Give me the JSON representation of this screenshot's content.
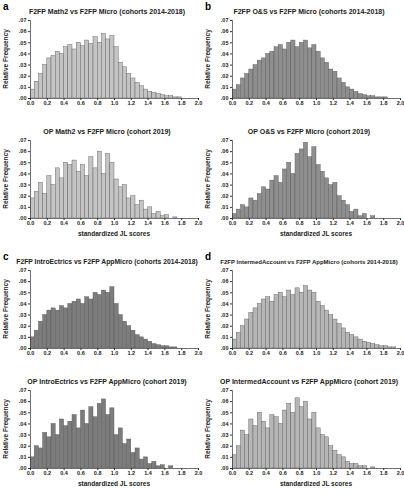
{
  "chart_data": [
    {
      "type": "histogram",
      "title": "F2FP Math2 vs F2FP Micro (cohorts 2014-2018)",
      "annotations": [
        "a"
      ],
      "y_label": "Relative Frequency",
      "color": "#c4c4c4",
      "bins": [
        0,
        0.05,
        0.1,
        0.15,
        0.2,
        0.25,
        0.3,
        0.35,
        0.4,
        0.45,
        0.5,
        0.55,
        0.6,
        0.65,
        0.7,
        0.75,
        0.8,
        0.85,
        0.9,
        0.95,
        1.0,
        1.05,
        1.1,
        1.15,
        1.2,
        1.25,
        1.3,
        1.35,
        1.4,
        1.45,
        1.5,
        1.55,
        1.6,
        1.65,
        1.7,
        1.75,
        1.8,
        1.85,
        1.9,
        1.95,
        2.0
      ],
      "values": [
        0.008,
        0.015,
        0.022,
        0.03,
        0.036,
        0.038,
        0.042,
        0.04,
        0.046,
        0.048,
        0.044,
        0.05,
        0.047,
        0.052,
        0.049,
        0.055,
        0.05,
        0.058,
        0.053,
        0.056,
        0.046,
        0.032,
        0.028,
        0.022,
        0.018,
        0.014,
        0.011,
        0.008,
        0.006,
        0.005,
        0.004,
        0.003,
        0.002,
        0.002,
        0.001,
        0.001,
        0,
        0,
        0,
        0
      ],
      "xlim": [
        0,
        2.0
      ],
      "ylim": [
        0,
        0.07
      ],
      "xticks": [
        {
          "value": 0,
          "label": "0.0"
        },
        0.2,
        0.4,
        0.6,
        0.8,
        {
          "value": 1,
          "label": "1.0"
        },
        1.2,
        1.4,
        1.6,
        1.8,
        {
          "value": 2,
          "label": "2.0"
        }
      ],
      "yticks": [
        {
          "value": 0,
          "label": ".00"
        },
        {
          "value": 0.01,
          "label": ".01"
        },
        {
          "value": 0.02,
          "label": ".02"
        },
        {
          "value": 0.03,
          "label": ".03"
        },
        {
          "value": 0.04,
          "label": ".04"
        },
        {
          "value": 0.05,
          "label": ".05"
        },
        {
          "value": 0.06,
          "label": ".06"
        },
        {
          "value": 0.07,
          "label": ".07"
        }
      ]
    },
    {
      "type": "histogram",
      "title": "OP Math2 vs F2FP Micro (cohort 2019)",
      "y_label": "Relative Frequency",
      "x_label": "standardized JL scores",
      "color": "#c4c4c4",
      "bins": [
        0,
        0.05,
        0.1,
        0.15,
        0.2,
        0.25,
        0.3,
        0.35,
        0.4,
        0.45,
        0.5,
        0.55,
        0.6,
        0.65,
        0.7,
        0.75,
        0.8,
        0.85,
        0.9,
        0.95,
        1.0,
        1.05,
        1.1,
        1.15,
        1.2,
        1.25,
        1.3,
        1.35,
        1.4,
        1.45,
        1.5,
        1.55,
        1.6,
        1.65,
        1.7,
        1.75,
        1.8,
        1.85,
        1.9,
        1.95,
        2.0
      ],
      "values": [
        0.018,
        0.024,
        0.032,
        0.022,
        0.038,
        0.03,
        0.045,
        0.036,
        0.05,
        0.048,
        0.052,
        0.042,
        0.048,
        0.038,
        0.055,
        0.045,
        0.06,
        0.04,
        0.058,
        0.05,
        0.035,
        0.028,
        0.03,
        0.018,
        0.02,
        0.012,
        0.016,
        0.008,
        0.01,
        0.004,
        0.006,
        0.002,
        0.003,
        0,
        0.001,
        0,
        0,
        0,
        0,
        0
      ],
      "xlim": [
        0,
        2.0
      ],
      "ylim": [
        0,
        0.07
      ],
      "xticks": [
        {
          "value": 0,
          "label": "0.0"
        },
        0.2,
        0.4,
        0.6,
        0.8,
        {
          "value": 1,
          "label": "1.0"
        },
        1.2,
        1.4,
        1.6,
        1.8,
        {
          "value": 2,
          "label": "2.0"
        }
      ],
      "yticks": [
        {
          "value": 0,
          "label": ".00"
        },
        {
          "value": 0.01,
          "label": ".01"
        },
        {
          "value": 0.02,
          "label": ".02"
        },
        {
          "value": 0.03,
          "label": ".03"
        },
        {
          "value": 0.04,
          "label": ".04"
        },
        {
          "value": 0.05,
          "label": ".05"
        },
        {
          "value": 0.06,
          "label": ".06"
        },
        {
          "value": 0.07,
          "label": ".07"
        }
      ]
    },
    {
      "type": "histogram",
      "title": "F2FP O&S vs F2FP Micro (cohorts 2014-2018)",
      "annotations": [
        "b"
      ],
      "y_label": "Relative Frequency",
      "color": "#8e8e8e",
      "bins": [
        0,
        0.05,
        0.1,
        0.15,
        0.2,
        0.25,
        0.3,
        0.35,
        0.4,
        0.45,
        0.5,
        0.55,
        0.6,
        0.65,
        0.7,
        0.75,
        0.8,
        0.85,
        0.9,
        0.95,
        1.0,
        1.05,
        1.1,
        1.15,
        1.2,
        1.25,
        1.3,
        1.35,
        1.4,
        1.45,
        1.5,
        1.55,
        1.6,
        1.65,
        1.7,
        1.75,
        1.8,
        1.85,
        1.9,
        1.95,
        2.0
      ],
      "values": [
        0.008,
        0.012,
        0.018,
        0.022,
        0.026,
        0.03,
        0.034,
        0.036,
        0.04,
        0.042,
        0.046,
        0.048,
        0.044,
        0.05,
        0.052,
        0.046,
        0.05,
        0.052,
        0.045,
        0.048,
        0.042,
        0.036,
        0.032,
        0.026,
        0.024,
        0.018,
        0.014,
        0.01,
        0.008,
        0.006,
        0.004,
        0.003,
        0.002,
        0.002,
        0.001,
        0.001,
        0.001,
        0,
        0,
        0
      ],
      "xlim": [
        0,
        2.0
      ],
      "ylim": [
        0,
        0.07
      ],
      "xticks": [
        {
          "value": 0,
          "label": "0.0"
        },
        0.2,
        0.4,
        0.6,
        0.8,
        {
          "value": 1,
          "label": "1.0"
        },
        1.2,
        1.4,
        1.6,
        1.8,
        {
          "value": 2,
          "label": "2.0"
        }
      ],
      "yticks": [
        {
          "value": 0,
          "label": ".00"
        },
        {
          "value": 0.01,
          "label": ".01"
        },
        {
          "value": 0.02,
          "label": ".02"
        },
        {
          "value": 0.03,
          "label": ".03"
        },
        {
          "value": 0.04,
          "label": ".04"
        },
        {
          "value": 0.05,
          "label": ".05"
        },
        {
          "value": 0.06,
          "label": ".06"
        },
        {
          "value": 0.07,
          "label": ".07"
        }
      ]
    },
    {
      "type": "histogram",
      "title": "OP O&S vs F2FP Micro (cohort 2019)",
      "y_label": "Relative Frequency",
      "x_label": "standardized JL scores",
      "color": "#8e8e8e",
      "bins": [
        0,
        0.05,
        0.1,
        0.15,
        0.2,
        0.25,
        0.3,
        0.35,
        0.4,
        0.45,
        0.5,
        0.55,
        0.6,
        0.65,
        0.7,
        0.75,
        0.8,
        0.85,
        0.9,
        0.95,
        1.0,
        1.05,
        1.1,
        1.15,
        1.2,
        1.25,
        1.3,
        1.35,
        1.4,
        1.45,
        1.5,
        1.55,
        1.6,
        1.65,
        1.7,
        1.75,
        1.8,
        1.85,
        1.9,
        1.95,
        2.0
      ],
      "values": [
        0.004,
        0.008,
        0.012,
        0.01,
        0.018,
        0.016,
        0.022,
        0.028,
        0.026,
        0.034,
        0.038,
        0.032,
        0.044,
        0.05,
        0.04,
        0.058,
        0.062,
        0.068,
        0.055,
        0.064,
        0.048,
        0.042,
        0.036,
        0.03,
        0.032,
        0.02,
        0.016,
        0.012,
        0.006,
        0.008,
        0.002,
        0.004,
        0,
        0.002,
        0,
        0,
        0,
        0,
        0,
        0
      ],
      "xlim": [
        0,
        2.0
      ],
      "ylim": [
        0,
        0.07
      ],
      "xticks": [
        {
          "value": 0,
          "label": "0.0"
        },
        0.2,
        0.4,
        0.6,
        0.8,
        {
          "value": 1,
          "label": "1.0"
        },
        1.2,
        1.4,
        1.6,
        1.8,
        {
          "value": 2,
          "label": "2.0"
        }
      ],
      "yticks": [
        {
          "value": 0,
          "label": ".00"
        },
        {
          "value": 0.01,
          "label": ".01"
        },
        {
          "value": 0.02,
          "label": ".02"
        },
        {
          "value": 0.03,
          "label": ".03"
        },
        {
          "value": 0.04,
          "label": ".04"
        },
        {
          "value": 0.05,
          "label": ".05"
        },
        {
          "value": 0.06,
          "label": ".06"
        },
        {
          "value": 0.07,
          "label": ".07"
        }
      ]
    },
    {
      "type": "histogram",
      "title": "F2FP IntroEctrics vs F2FP AppMicro (cohorts 2014-2018)",
      "annotations": [
        "c"
      ],
      "y_label": "Relative Frequency",
      "color": "#7c7c7c",
      "bins": [
        0,
        0.05,
        0.1,
        0.15,
        0.2,
        0.25,
        0.3,
        0.35,
        0.4,
        0.45,
        0.5,
        0.55,
        0.6,
        0.65,
        0.7,
        0.75,
        0.8,
        0.85,
        0.9,
        0.95,
        1.0,
        1.05,
        1.1,
        1.15,
        1.2,
        1.25,
        1.3,
        1.35,
        1.4,
        1.45,
        1.5,
        1.55,
        1.6,
        1.65,
        1.7,
        1.75,
        1.8,
        1.85,
        1.9,
        1.95,
        2.0
      ],
      "values": [
        0.01,
        0.016,
        0.024,
        0.03,
        0.034,
        0.036,
        0.034,
        0.038,
        0.036,
        0.04,
        0.042,
        0.044,
        0.04,
        0.046,
        0.044,
        0.05,
        0.048,
        0.052,
        0.05,
        0.055,
        0.04,
        0.03,
        0.024,
        0.02,
        0.016,
        0.012,
        0.01,
        0.008,
        0.006,
        0.004,
        0.003,
        0.002,
        0.002,
        0.001,
        0.001,
        0,
        0,
        0,
        0,
        0
      ],
      "xlim": [
        0,
        2.0
      ],
      "ylim": [
        0,
        0.07
      ],
      "xticks": [
        {
          "value": 0,
          "label": "0.0"
        },
        0.2,
        0.4,
        0.6,
        0.8,
        {
          "value": 1,
          "label": "1.0"
        },
        1.2,
        1.4,
        1.6,
        1.8,
        {
          "value": 2,
          "label": "2.0"
        }
      ],
      "yticks": [
        {
          "value": 0,
          "label": ".00"
        },
        {
          "value": 0.01,
          "label": ".01"
        },
        {
          "value": 0.02,
          "label": ".02"
        },
        {
          "value": 0.03,
          "label": ".03"
        },
        {
          "value": 0.04,
          "label": ".04"
        },
        {
          "value": 0.05,
          "label": ".05"
        },
        {
          "value": 0.06,
          "label": ".06"
        },
        {
          "value": 0.07,
          "label": ".07"
        }
      ]
    },
    {
      "type": "histogram",
      "title": "OP IntroEctrics vs F2FP AppMicro (cohort 2019)",
      "y_label": "Relative Frequency",
      "x_label": "standardized JL scores",
      "color": "#7c7c7c",
      "bins": [
        0,
        0.05,
        0.1,
        0.15,
        0.2,
        0.25,
        0.3,
        0.35,
        0.4,
        0.45,
        0.5,
        0.55,
        0.6,
        0.65,
        0.7,
        0.75,
        0.8,
        0.85,
        0.9,
        0.95,
        1.0,
        1.05,
        1.1,
        1.15,
        1.2,
        1.25,
        1.3,
        1.35,
        1.4,
        1.45,
        1.5,
        1.55,
        1.6,
        1.65,
        1.7,
        1.75,
        1.8,
        1.85,
        1.9,
        1.95,
        2.0
      ],
      "values": [
        0.01,
        0.02,
        0.018,
        0.032,
        0.028,
        0.04,
        0.03,
        0.044,
        0.038,
        0.042,
        0.048,
        0.036,
        0.052,
        0.04,
        0.055,
        0.046,
        0.058,
        0.062,
        0.048,
        0.054,
        0.03,
        0.036,
        0.022,
        0.026,
        0.014,
        0.018,
        0.008,
        0.01,
        0.004,
        0.006,
        0.002,
        0.003,
        0,
        0.002,
        0,
        0,
        0,
        0,
        0,
        0
      ],
      "xlim": [
        0,
        2.0
      ],
      "ylim": [
        0,
        0.07
      ],
      "xticks": [
        {
          "value": 0,
          "label": "0.0"
        },
        0.2,
        0.4,
        0.6,
        0.8,
        {
          "value": 1,
          "label": "1.0"
        },
        1.2,
        1.4,
        1.6,
        1.8,
        {
          "value": 2,
          "label": "2.0"
        }
      ],
      "yticks": [
        {
          "value": 0,
          "label": ".00"
        },
        {
          "value": 0.01,
          "label": ".01"
        },
        {
          "value": 0.02,
          "label": ".02"
        },
        {
          "value": 0.03,
          "label": ".03"
        },
        {
          "value": 0.04,
          "label": ".04"
        },
        {
          "value": 0.05,
          "label": ".05"
        },
        {
          "value": 0.06,
          "label": ".06"
        },
        {
          "value": 0.07,
          "label": ".07"
        }
      ]
    },
    {
      "type": "histogram",
      "title": "F2FP IntermedAccount vs F2FP AppMicro (cohorts 2014-2018)",
      "annotations": [
        "d"
      ],
      "y_label": "Relative Frequency",
      "color": "#b6b6b6",
      "bins": [
        0,
        0.05,
        0.1,
        0.15,
        0.2,
        0.25,
        0.3,
        0.35,
        0.4,
        0.45,
        0.5,
        0.55,
        0.6,
        0.65,
        0.7,
        0.75,
        0.8,
        0.85,
        0.9,
        0.95,
        1.0,
        1.05,
        1.1,
        1.15,
        1.2,
        1.25,
        1.3,
        1.35,
        1.4,
        1.45,
        1.5,
        1.55,
        1.6,
        1.65,
        1.7,
        1.75,
        1.8,
        1.85,
        1.9,
        1.95,
        2.0
      ],
      "values": [
        0.008,
        0.014,
        0.02,
        0.026,
        0.032,
        0.036,
        0.04,
        0.044,
        0.046,
        0.042,
        0.048,
        0.05,
        0.046,
        0.052,
        0.048,
        0.054,
        0.05,
        0.056,
        0.052,
        0.05,
        0.042,
        0.038,
        0.034,
        0.03,
        0.026,
        0.022,
        0.018,
        0.014,
        0.012,
        0.01,
        0.008,
        0.006,
        0.005,
        0.004,
        0.003,
        0.002,
        0.002,
        0.001,
        0.001,
        0
      ],
      "xlim": [
        0,
        2.0
      ],
      "ylim": [
        0,
        0.07
      ],
      "xticks": [
        {
          "value": 0,
          "label": "0.0"
        },
        0.2,
        0.4,
        0.6,
        0.8,
        {
          "value": 1,
          "label": "1.0"
        },
        1.2,
        1.4,
        1.6,
        1.8,
        {
          "value": 2,
          "label": "2.0"
        }
      ],
      "yticks": [
        {
          "value": 0,
          "label": ".00"
        },
        {
          "value": 0.01,
          "label": ".01"
        },
        {
          "value": 0.02,
          "label": ".02"
        },
        {
          "value": 0.03,
          "label": ".03"
        },
        {
          "value": 0.04,
          "label": ".04"
        },
        {
          "value": 0.05,
          "label": ".05"
        },
        {
          "value": 0.06,
          "label": ".06"
        },
        {
          "value": 0.07,
          "label": ".07"
        }
      ]
    },
    {
      "type": "histogram",
      "title": "OP IntermedAccount vs F2FP AppMicro (cohort 2019)",
      "y_label": "Relative Frequency",
      "x_label": "standardized JL scores",
      "color": "#b6b6b6",
      "bins": [
        0,
        0.05,
        0.1,
        0.15,
        0.2,
        0.25,
        0.3,
        0.35,
        0.4,
        0.45,
        0.5,
        0.55,
        0.6,
        0.65,
        0.7,
        0.75,
        0.8,
        0.85,
        0.9,
        0.95,
        1.0,
        1.05,
        1.1,
        1.15,
        1.2,
        1.25,
        1.3,
        1.35,
        1.4,
        1.45,
        1.5,
        1.55,
        1.6,
        1.65,
        1.7,
        1.75,
        1.8,
        1.85,
        1.9,
        1.95,
        2.0
      ],
      "values": [
        0.012,
        0.02,
        0.034,
        0.03,
        0.044,
        0.038,
        0.05,
        0.042,
        0.036,
        0.048,
        0.046,
        0.04,
        0.052,
        0.058,
        0.05,
        0.063,
        0.055,
        0.06,
        0.044,
        0.05,
        0.036,
        0.03,
        0.028,
        0.02,
        0.016,
        0.012,
        0.01,
        0.006,
        0.004,
        0.004,
        0.002,
        0.002,
        0,
        0.001,
        0,
        0,
        0,
        0,
        0,
        0
      ],
      "xlim": [
        0,
        2.0
      ],
      "ylim": [
        0,
        0.07
      ],
      "xticks": [
        {
          "value": 0,
          "label": "0.0"
        },
        0.2,
        0.4,
        0.6,
        0.8,
        {
          "value": 1,
          "label": "1.0"
        },
        1.2,
        1.4,
        1.6,
        1.8,
        {
          "value": 2,
          "label": "2.0"
        }
      ],
      "yticks": [
        {
          "value": 0,
          "label": ".00"
        },
        {
          "value": 0.01,
          "label": ".01"
        },
        {
          "value": 0.02,
          "label": ".02"
        },
        {
          "value": 0.03,
          "label": ".03"
        },
        {
          "value": 0.04,
          "label": ".04"
        },
        {
          "value": 0.05,
          "label": ".05"
        },
        {
          "value": 0.06,
          "label": ".06"
        },
        {
          "value": 0.07,
          "label": ".07"
        }
      ]
    }
  ]
}
